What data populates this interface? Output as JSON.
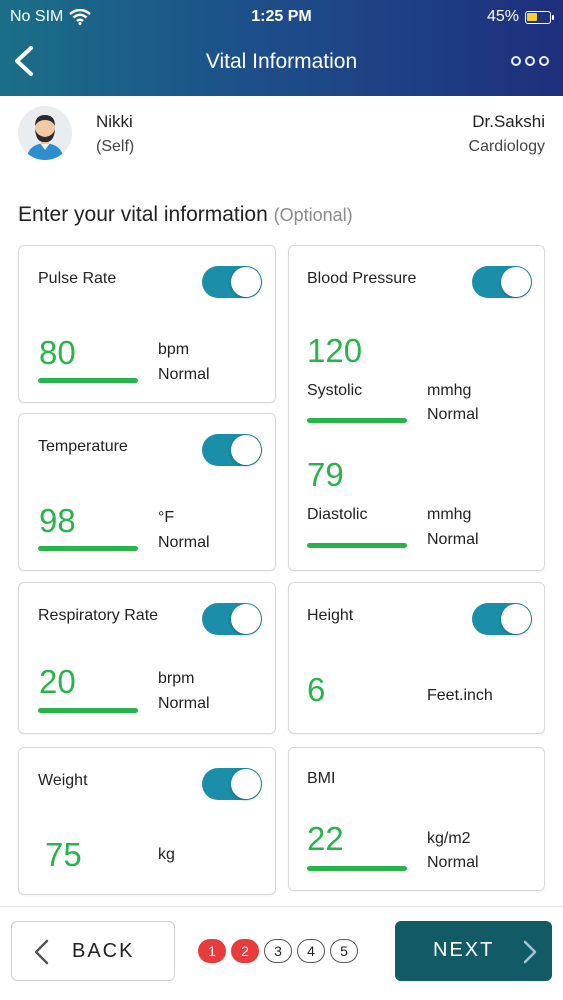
{
  "status": {
    "carrier": "No SIM",
    "time": "1:25 PM",
    "battery": "45%",
    "battery_level": 0.45
  },
  "header": {
    "title": "Vital Information"
  },
  "profile": {
    "name": "Nikki",
    "relation": "(Self)",
    "doctor": "Dr.Sakshi",
    "specialty": "Cardiology"
  },
  "section": {
    "title": "Enter your vital information",
    "optional": "(Optional)"
  },
  "vitals": {
    "pulse": {
      "label": "Pulse Rate",
      "value": "80",
      "unit": "bpm",
      "status": "Normal"
    },
    "bp": {
      "label": "Blood Pressure",
      "systolic_value": "120",
      "systolic_label": "Systolic",
      "systolic_unit": "mmhg",
      "systolic_status": "Normal",
      "diastolic_value": "79",
      "diastolic_label": "Diastolic",
      "diastolic_unit": "mmhg",
      "diastolic_status": "Normal"
    },
    "temp": {
      "label": "Temperature",
      "value": "98",
      "unit": "°F",
      "status": "Normal"
    },
    "resp": {
      "label": "Respiratory Rate",
      "value": "20",
      "unit": "brpm",
      "status": "Normal"
    },
    "height": {
      "label": "Height",
      "value": "6",
      "unit": "Feet.inch"
    },
    "weight": {
      "label": "Weight",
      "value": "75",
      "unit": "kg"
    },
    "bmi": {
      "label": "BMI",
      "value": "22",
      "unit": "kg/m2",
      "status": "Normal"
    }
  },
  "footer": {
    "back_label": "BACK",
    "next_label": "NEXT",
    "pages": [
      "1",
      "2",
      "3",
      "4",
      "5"
    ],
    "active_pages": [
      "1",
      "2"
    ]
  },
  "colors": {
    "accent": "#1b8fa9",
    "value_green": "#28b34b",
    "next_button": "#115a66",
    "page_active": "#e83b3b"
  }
}
